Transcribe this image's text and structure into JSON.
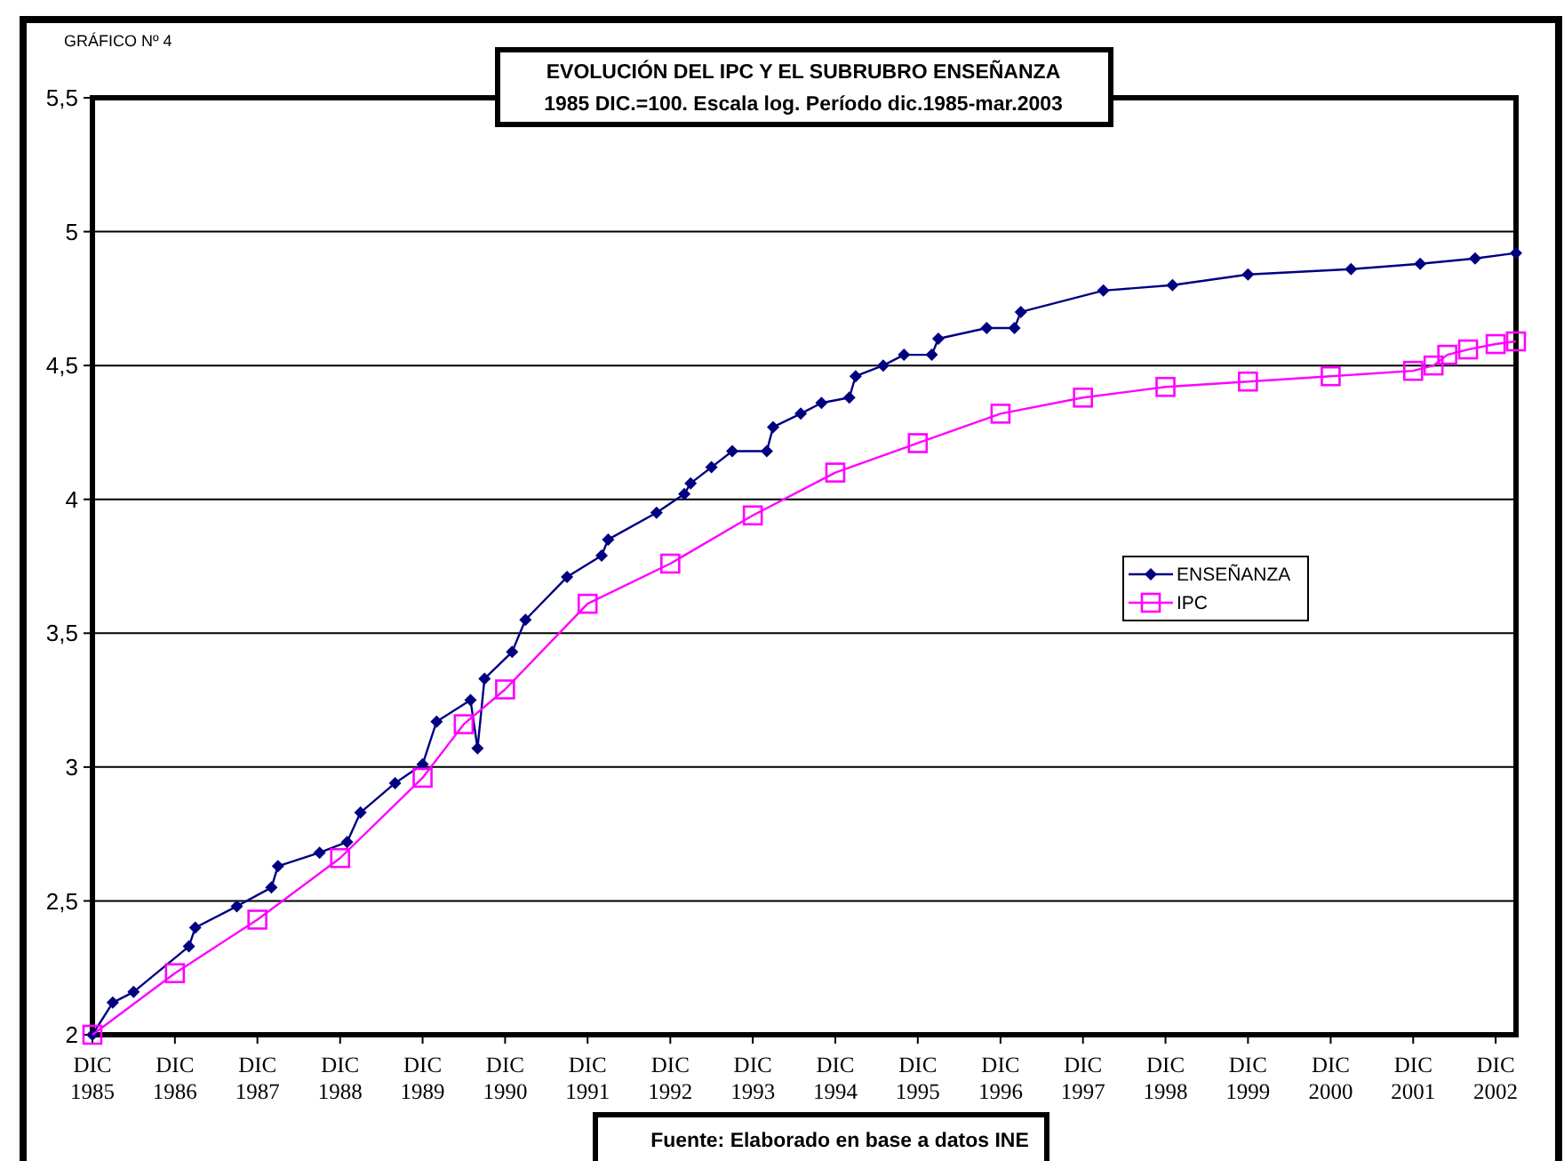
{
  "chart_data": {
    "type": "line",
    "title": "EVOLUCIÓN DEL IPC Y EL SUBRUBRO ENSEÑANZA",
    "subtitle": "1985 DIC.=100. Escala log. Período dic.1985-mar.2003",
    "annotations": [
      "GRÁFICO Nº 4",
      "Fuente: Elaborado en base a datos INE"
    ],
    "series": [
      {
        "name": "ENSEÑANZA",
        "color": "#000080",
        "marker": "diamond",
        "x": [
          "1985-12",
          "1986-03",
          "1986-06",
          "1987-02",
          "1987-03",
          "1987-09",
          "1988-02",
          "1988-03",
          "1988-09",
          "1989-01",
          "1989-03",
          "1989-08",
          "1989-12",
          "1990-02",
          "1990-07",
          "1990-08",
          "1990-09",
          "1991-01",
          "1991-03",
          "1991-09",
          "1992-02",
          "1992-03",
          "1992-10",
          "1993-02",
          "1993-03",
          "1993-06",
          "1993-09",
          "1994-02",
          "1994-03",
          "1994-07",
          "1994-10",
          "1995-02",
          "1995-03",
          "1995-07",
          "1995-10",
          "1996-02",
          "1996-03",
          "1996-10",
          "1997-02",
          "1997-03",
          "1998-03",
          "1999-01",
          "1999-12",
          "2001-03",
          "2002-01",
          "2002-09",
          "2003-03"
        ],
        "values": [
          2.0,
          2.12,
          2.16,
          2.33,
          2.4,
          2.48,
          2.55,
          2.63,
          2.68,
          2.72,
          2.83,
          2.94,
          3.01,
          3.17,
          3.25,
          3.07,
          3.33,
          3.43,
          3.55,
          3.71,
          3.79,
          3.85,
          3.95,
          4.02,
          4.06,
          4.12,
          4.18,
          4.18,
          4.27,
          4.32,
          4.36,
          4.38,
          4.46,
          4.5,
          4.54,
          4.54,
          4.6,
          4.64,
          4.64,
          4.7,
          4.78,
          4.8,
          4.84,
          4.86,
          4.88,
          4.9,
          4.92
        ]
      },
      {
        "name": "IPC",
        "color": "#ff00ff",
        "marker": "square",
        "x": [
          "1985-12",
          "1986-12",
          "1987-12",
          "1988-12",
          "1989-12",
          "1990-06",
          "1990-12",
          "1991-12",
          "1992-12",
          "1993-12",
          "1994-12",
          "1995-12",
          "1996-12",
          "1997-12",
          "1998-12",
          "1999-12",
          "2000-12",
          "2001-12",
          "2002-03",
          "2002-05",
          "2002-08",
          "2002-12",
          "2003-03"
        ],
        "values": [
          2.0,
          2.23,
          2.43,
          2.66,
          2.96,
          3.16,
          3.29,
          3.61,
          3.76,
          3.94,
          4.1,
          4.21,
          4.32,
          4.38,
          4.42,
          4.44,
          4.46,
          4.48,
          4.5,
          4.54,
          4.56,
          4.58,
          4.59
        ]
      }
    ],
    "xlim": [
      "1985-12",
      "2003-03"
    ],
    "xticks": [
      {
        "value": "1985-12",
        "label": "DIC 1985"
      },
      {
        "value": "1986-12",
        "label": "DIC 1986"
      },
      {
        "value": "1987-12",
        "label": "DIC 1987"
      },
      {
        "value": "1988-12",
        "label": "DIC 1988"
      },
      {
        "value": "1989-12",
        "label": "DIC 1989"
      },
      {
        "value": "1990-12",
        "label": "DIC 1990"
      },
      {
        "value": "1991-12",
        "label": "DIC 1991"
      },
      {
        "value": "1992-12",
        "label": "DIC 1992"
      },
      {
        "value": "1993-12",
        "label": "DIC 1993"
      },
      {
        "value": "1994-12",
        "label": "DIC 1994"
      },
      {
        "value": "1995-12",
        "label": "DIC 1995"
      },
      {
        "value": "1996-12",
        "label": "DIC 1996"
      },
      {
        "value": "1997-12",
        "label": "DIC 1997"
      },
      {
        "value": "1998-12",
        "label": "DIC 1998"
      },
      {
        "value": "1999-12",
        "label": "DIC 1999"
      },
      {
        "value": "2000-12",
        "label": "DIC 2000"
      },
      {
        "value": "2001-12",
        "label": "DIC 2001"
      },
      {
        "value": "2002-12",
        "label": "DIC 2002"
      }
    ],
    "ylim": [
      2,
      5.5
    ],
    "yticks": [
      2,
      {
        "value": 2.5,
        "label": "2,5"
      },
      3,
      {
        "value": 3.5,
        "label": "3,5"
      },
      4,
      {
        "value": 4.5,
        "label": "4,5"
      },
      5,
      {
        "value": 5.5,
        "label": "5,5"
      }
    ],
    "grid": "y",
    "legend": "right",
    "line_style": "solid"
  }
}
